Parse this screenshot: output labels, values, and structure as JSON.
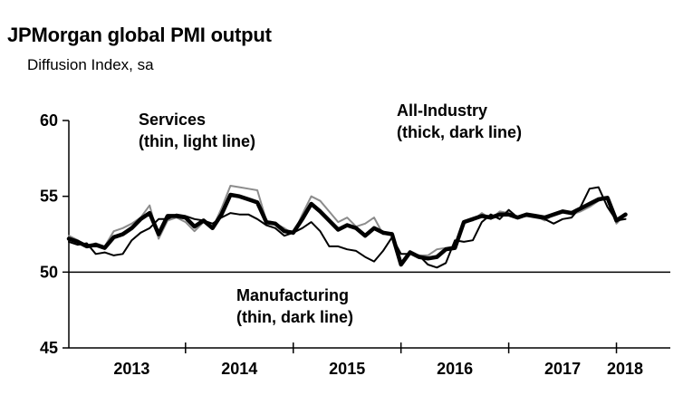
{
  "title": "JPMorgan global PMI output",
  "subtitle": "Diffusion Index, sa",
  "chart_data": {
    "type": "line",
    "title": "JPMorgan global PMI output",
    "subtitle": "Diffusion Index, sa",
    "xlabel": "",
    "ylabel": "",
    "ylim": [
      45,
      60
    ],
    "xlim": [
      2012.917,
      2018.5
    ],
    "yticks": [
      45,
      50,
      55,
      60
    ],
    "reference_line": 50,
    "grid": false,
    "legend": "none",
    "xtick_labels": [
      {
        "label": "2013",
        "center": 2013.5
      },
      {
        "label": "2014",
        "center": 2014.5
      },
      {
        "label": "2015",
        "center": 2015.5
      },
      {
        "label": "2016",
        "center": 2016.5
      },
      {
        "label": "2017",
        "center": 2017.5
      },
      {
        "label": "2018",
        "center": 2018.5
      }
    ],
    "year_boundaries": [
      2014,
      2015,
      2016,
      2017,
      2018
    ],
    "x_start": 2012.917,
    "x_step": 0.08333,
    "annotations": [
      {
        "lines": [
          "Services",
          "(thin, light line)"
        ],
        "series": "Services"
      },
      {
        "lines": [
          "All-Industry",
          "(thick, dark line)"
        ],
        "series": "All-Industry"
      },
      {
        "lines": [
          "Manufacturing",
          "(thin, dark line)"
        ],
        "series": "Manufacturing"
      }
    ],
    "series": [
      {
        "name": "Services",
        "color": "#8c8c8c",
        "values": [
          52.4,
          52.1,
          51.7,
          51.9,
          51.7,
          52.7,
          52.9,
          53.2,
          53.6,
          54.4,
          52.2,
          53.4,
          53.6,
          53.3,
          52.7,
          53.3,
          52.9,
          54.2,
          55.7,
          55.6,
          55.5,
          55.4,
          53.4,
          53.2,
          52.9,
          52.5,
          53.8,
          55.0,
          54.7,
          54.0,
          53.3,
          53.6,
          53.0,
          53.2,
          53.6,
          52.5,
          52.6,
          50.6,
          51.4,
          51.1,
          51.1,
          51.5,
          51.6,
          51.7,
          53.3,
          53.4,
          53.9,
          53.5,
          54.0,
          53.9,
          53.6,
          53.8,
          53.7,
          53.4,
          53.8,
          54.0,
          53.8,
          54.0,
          54.3,
          54.7,
          54.9,
          53.2,
          53.8
        ]
      },
      {
        "name": "Manufacturing",
        "color": "#000000",
        "values": [
          52.0,
          51.8,
          51.9,
          51.2,
          51.3,
          51.1,
          51.2,
          52.1,
          52.6,
          52.9,
          53.5,
          53.5,
          53.8,
          53.7,
          53.5,
          53.4,
          53.2,
          53.6,
          53.9,
          53.8,
          53.8,
          53.5,
          53.1,
          52.9,
          52.4,
          52.6,
          52.9,
          53.3,
          52.7,
          51.7,
          51.7,
          51.5,
          51.4,
          51.0,
          50.7,
          51.4,
          52.3,
          51.2,
          51.2,
          51.1,
          50.5,
          50.3,
          50.6,
          52.1,
          52.0,
          52.1,
          53.3,
          53.8,
          53.5,
          54.1,
          53.6,
          53.7,
          53.6,
          53.5,
          53.2,
          53.5,
          53.6,
          54.3,
          55.5,
          55.6,
          54.3,
          53.4,
          53.5
        ]
      },
      {
        "name": "All-Industry",
        "color": "#000000",
        "values": [
          52.2,
          52.0,
          51.7,
          51.8,
          51.6,
          52.3,
          52.5,
          52.9,
          53.5,
          53.9,
          52.5,
          53.7,
          53.7,
          53.6,
          53.0,
          53.4,
          52.9,
          53.8,
          55.1,
          55.0,
          54.8,
          54.6,
          53.3,
          53.2,
          52.7,
          52.6,
          53.5,
          54.5,
          54.0,
          53.4,
          52.8,
          53.1,
          52.9,
          52.4,
          52.9,
          52.6,
          52.5,
          50.5,
          51.3,
          51.0,
          50.9,
          51.0,
          51.5,
          51.6,
          53.3,
          53.5,
          53.7,
          53.6,
          53.8,
          53.8,
          53.6,
          53.8,
          53.7,
          53.6,
          53.8,
          54.0,
          53.9,
          54.2,
          54.5,
          54.8,
          54.9,
          53.4,
          53.8
        ]
      }
    ]
  }
}
